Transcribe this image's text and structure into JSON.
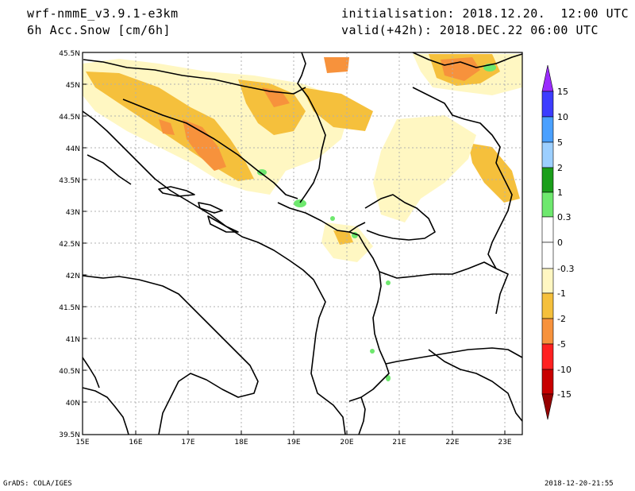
{
  "header": {
    "model": "wrf-nmmE_v3.9.1-e3km",
    "field": "6h Acc.Snow [cm/6h]",
    "init": "initialisation: 2018.12.20.  12:00 UTC",
    "valid": "valid(+42h): 2018.DEC.22 06:00 UTC"
  },
  "axes": {
    "lat_labels": [
      "45.5N",
      "45N",
      "44.5N",
      "44N",
      "43.5N",
      "43N",
      "42.5N",
      "42N",
      "41.5N",
      "41N",
      "40.5N",
      "40N",
      "39.5N"
    ],
    "lon_labels": [
      "15E",
      "16E",
      "17E",
      "18E",
      "19E",
      "20E",
      "21E",
      "22E",
      "23E"
    ]
  },
  "colorbar": {
    "labels": [
      "15",
      "10",
      "5",
      "2",
      "1",
      "0.3",
      "0",
      "-0.3",
      "-1",
      "-2",
      "-5",
      "-10",
      "-15"
    ],
    "colors": [
      "#9a2bff",
      "#3c3cff",
      "#4aa0ff",
      "#9ccfff",
      "#1a9e1a",
      "#6ee86e",
      "#ffffff",
      "#ffffff",
      "#fff7c2",
      "#f5c03c",
      "#f7923c",
      "#ff2020",
      "#c80000",
      "#960000"
    ]
  },
  "footer": {
    "left": "GrADS: COLA/IGES",
    "right": "2018-12-20-21:55"
  }
}
